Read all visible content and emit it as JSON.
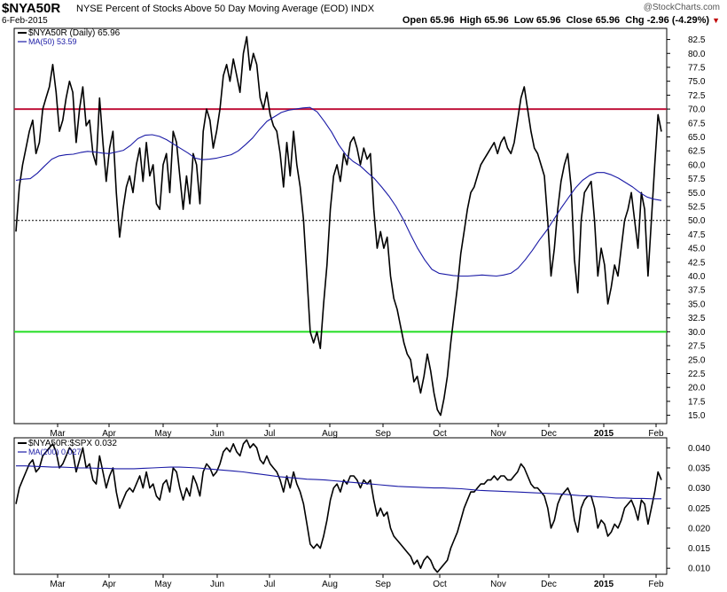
{
  "header": {
    "ticker": "$NYA50R",
    "title": "NYSE Percent of Stocks Above 50 Day Moving Average (EOD)  INDX",
    "date": "6-Feb-2015",
    "brand": "@StockCharts.com",
    "open_label": "Open",
    "open": "65.96",
    "high_label": "High",
    "high": "65.96",
    "low_label": "Low",
    "low": "65.96",
    "close_label": "Close",
    "close": "65.96",
    "chg_label": "Chg",
    "chg": "-2.96 (-4.29%)",
    "chg_arrow": "▼"
  },
  "colors": {
    "price_line": "#000000",
    "ma_line": "#1a1aa6",
    "overbought_line": "#c0143c",
    "oversold_line": "#22dd22",
    "midline": "#000000"
  },
  "chart_data": [
    {
      "type": "line",
      "name": "upper-panel",
      "legend": [
        "$NYA50R (Daily) 65.96",
        "MA(50) 53.59"
      ],
      "x_tick_labels": [
        "Mar",
        "Apr",
        "May",
        "Jun",
        "Jul",
        "Aug",
        "Sep",
        "Oct",
        "Nov",
        "Dec",
        "2015",
        "Feb"
      ],
      "y_tick_labels": [
        "82.5",
        "80.0",
        "77.5",
        "75.0",
        "72.5",
        "70.0",
        "67.5",
        "65.0",
        "62.5",
        "60.0",
        "57.5",
        "55.0",
        "52.5",
        "50.0",
        "47.5",
        "45.0",
        "42.5",
        "40.0",
        "37.5",
        "35.0",
        "32.5",
        "30.0",
        "27.5",
        "25.0",
        "22.5",
        "20.0",
        "17.5",
        "15.0"
      ],
      "ylim": [
        13.5,
        84.5
      ],
      "reference_lines": [
        {
          "value": 70,
          "style": "solid",
          "color": "#c0143c"
        },
        {
          "value": 30,
          "style": "solid",
          "color": "#22dd22"
        },
        {
          "value": 50,
          "style": "dotted",
          "color": "#000000"
        }
      ],
      "series": [
        {
          "name": "$NYA50R (Daily)",
          "values": [
            48,
            56,
            60,
            63,
            66,
            68,
            62,
            64,
            70,
            72,
            74,
            78,
            73,
            66,
            68,
            72,
            75,
            73,
            64,
            70,
            74,
            67,
            68,
            62,
            60,
            72,
            64,
            57,
            63,
            66,
            55,
            47,
            52,
            56,
            58,
            55,
            60,
            63,
            57,
            64,
            58,
            60,
            53,
            52,
            60,
            62,
            55,
            66,
            64,
            58,
            52,
            58,
            53,
            62,
            60,
            53,
            66,
            70,
            68,
            63,
            66,
            70,
            76,
            78,
            75,
            79,
            76,
            73,
            80,
            83,
            77,
            80,
            78,
            72,
            70,
            73,
            69,
            67,
            66,
            62,
            56,
            64,
            58,
            66,
            60,
            56,
            50,
            40,
            30,
            28,
            30,
            27,
            35,
            42,
            52,
            58,
            60,
            57,
            62,
            60,
            64,
            65,
            63,
            60,
            63,
            61,
            62,
            52,
            45,
            48,
            45,
            47,
            40,
            36,
            34,
            31,
            28,
            26,
            25,
            21,
            22,
            19,
            22,
            26,
            23,
            19,
            16,
            15,
            18,
            22,
            28,
            33,
            38,
            44,
            48,
            52,
            55,
            56,
            58,
            60,
            61,
            62,
            63,
            64,
            62,
            64,
            65,
            63,
            62,
            64,
            68,
            72,
            74,
            70,
            66,
            63,
            62,
            60,
            58,
            50,
            40,
            45,
            52,
            57,
            60,
            62,
            56,
            43,
            37,
            50,
            55,
            56,
            57,
            50,
            40,
            45,
            42,
            35,
            38,
            42,
            40,
            45,
            50,
            52,
            55,
            50,
            45,
            55,
            52,
            40,
            50,
            60,
            69,
            65.96
          ]
        },
        {
          "name": "MA(50)",
          "values": [
            57.2,
            57.4,
            57.5,
            58.5,
            59.8,
            61.0,
            61.6,
            61.8,
            61.9,
            62.2,
            62.4,
            62.3,
            62.1,
            62.0,
            62.3,
            62.6,
            63.5,
            64.7,
            65.3,
            65.4,
            65.1,
            64.5,
            63.7,
            62.9,
            62.1,
            61.2,
            60.9,
            61.0,
            61.2,
            61.5,
            61.8,
            62.5,
            63.6,
            64.8,
            66.4,
            67.8,
            68.6,
            69.4,
            69.8,
            70.0,
            70.2,
            70.3,
            69.5,
            67.8,
            65.9,
            63.6,
            61.8,
            60.6,
            59.8,
            58.6,
            57.5,
            56.0,
            54.4,
            52.5,
            50.2,
            47.5,
            45.0,
            42.9,
            41.2,
            40.5,
            40.3,
            40.1,
            40.0,
            40.0,
            40.1,
            40.2,
            40.1,
            40.0,
            40.2,
            40.5,
            41.4,
            42.9,
            44.6,
            46.5,
            48.2,
            50.2,
            52.2,
            54.0,
            55.8,
            57.2,
            58.1,
            58.6,
            58.6,
            58.2,
            57.6,
            56.8,
            56.0,
            55.0,
            54.2,
            53.8,
            53.59
          ]
        }
      ]
    },
    {
      "type": "line",
      "name": "lower-panel",
      "legend": [
        "$NYA50R:$SPX 0.032",
        "MA(200) 0.027"
      ],
      "x_tick_labels": [
        "Mar",
        "Apr",
        "May",
        "Jun",
        "Jul",
        "Aug",
        "Sep",
        "Oct",
        "Nov",
        "Dec",
        "2015",
        "Feb"
      ],
      "y_tick_labels": [
        "0.040",
        "0.035",
        "0.030",
        "0.025",
        "0.020",
        "0.015",
        "0.010"
      ],
      "ylim": [
        0.0085,
        0.0425
      ],
      "series": [
        {
          "name": "$NYA50R:$SPX",
          "values": [
            0.026,
            0.03,
            0.032,
            0.034,
            0.036,
            0.037,
            0.034,
            0.035,
            0.038,
            0.039,
            0.04,
            0.041,
            0.039,
            0.035,
            0.036,
            0.038,
            0.04,
            0.039,
            0.034,
            0.037,
            0.04,
            0.035,
            0.036,
            0.032,
            0.031,
            0.038,
            0.034,
            0.03,
            0.033,
            0.035,
            0.029,
            0.025,
            0.027,
            0.029,
            0.03,
            0.029,
            0.031,
            0.033,
            0.03,
            0.034,
            0.03,
            0.031,
            0.028,
            0.027,
            0.031,
            0.032,
            0.029,
            0.035,
            0.034,
            0.03,
            0.027,
            0.03,
            0.028,
            0.033,
            0.031,
            0.028,
            0.034,
            0.036,
            0.035,
            0.033,
            0.034,
            0.036,
            0.039,
            0.04,
            0.039,
            0.041,
            0.039,
            0.038,
            0.041,
            0.042,
            0.04,
            0.041,
            0.04,
            0.037,
            0.036,
            0.038,
            0.036,
            0.035,
            0.034,
            0.032,
            0.029,
            0.033,
            0.03,
            0.034,
            0.031,
            0.029,
            0.026,
            0.021,
            0.016,
            0.015,
            0.016,
            0.015,
            0.018,
            0.022,
            0.027,
            0.03,
            0.031,
            0.029,
            0.032,
            0.031,
            0.033,
            0.033,
            0.032,
            0.03,
            0.032,
            0.031,
            0.032,
            0.027,
            0.023,
            0.025,
            0.023,
            0.024,
            0.02,
            0.018,
            0.017,
            0.016,
            0.015,
            0.014,
            0.013,
            0.011,
            0.012,
            0.01,
            0.012,
            0.013,
            0.012,
            0.01,
            0.009,
            0.01,
            0.011,
            0.012,
            0.015,
            0.017,
            0.019,
            0.022,
            0.025,
            0.027,
            0.029,
            0.029,
            0.03,
            0.031,
            0.031,
            0.032,
            0.032,
            0.033,
            0.032,
            0.033,
            0.033,
            0.032,
            0.032,
            0.033,
            0.034,
            0.036,
            0.035,
            0.033,
            0.031,
            0.03,
            0.03,
            0.029,
            0.028,
            0.025,
            0.02,
            0.022,
            0.026,
            0.028,
            0.029,
            0.03,
            0.028,
            0.022,
            0.019,
            0.025,
            0.027,
            0.028,
            0.028,
            0.025,
            0.02,
            0.022,
            0.021,
            0.018,
            0.019,
            0.021,
            0.02,
            0.022,
            0.025,
            0.026,
            0.027,
            0.025,
            0.022,
            0.027,
            0.026,
            0.021,
            0.025,
            0.029,
            0.034,
            0.032
          ]
        },
        {
          "name": "MA(200)",
          "values": [
            0.0355,
            0.0355,
            0.0354,
            0.0353,
            0.0352,
            0.0352,
            0.0351,
            0.035,
            0.035,
            0.0349,
            0.0349,
            0.0348,
            0.0348,
            0.0348,
            0.0349,
            0.035,
            0.0351,
            0.0352,
            0.0352,
            0.0351,
            0.035,
            0.0348,
            0.0346,
            0.0344,
            0.0342,
            0.034,
            0.0337,
            0.0334,
            0.0331,
            0.0328,
            0.0326,
            0.0324,
            0.0322,
            0.0321,
            0.032,
            0.0318,
            0.0316,
            0.0314,
            0.0312,
            0.031,
            0.0308,
            0.0306,
            0.0304,
            0.0303,
            0.0302,
            0.0301,
            0.03,
            0.03,
            0.0299,
            0.0298,
            0.0296,
            0.0294,
            0.0293,
            0.0292,
            0.0291,
            0.029,
            0.0289,
            0.0288,
            0.0287,
            0.0286,
            0.0285,
            0.0283,
            0.0281,
            0.028,
            0.0278,
            0.0277,
            0.0275,
            0.0275,
            0.0274,
            0.0274,
            0.0273,
            0.0273
          ]
        }
      ]
    }
  ]
}
